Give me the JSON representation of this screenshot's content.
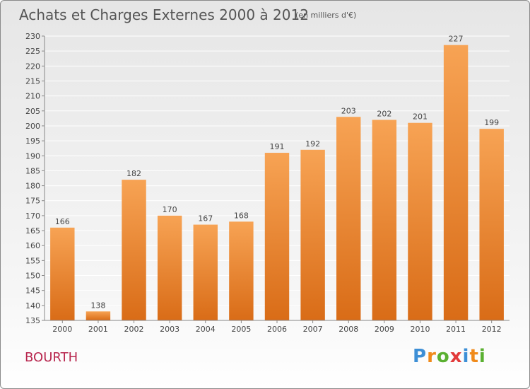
{
  "header": {
    "title": "Achats et Charges Externes 2000 à 2012",
    "unit": "(en milliers d'€)"
  },
  "place": "BOURTH",
  "logo": {
    "text": "Proxiti",
    "letter_colors": [
      "#3d8fd6",
      "#f08a1a",
      "#5ab031",
      "#e23a3a",
      "#3d8fd6",
      "#f08a1a",
      "#5ab031"
    ]
  },
  "colors": {
    "bar_light": "#f7a354",
    "bar_dark": "#d96c17",
    "axis_text": "#444444",
    "grid": "#ffffff"
  },
  "chart_data": {
    "type": "bar",
    "title": "Achats et Charges Externes 2000 à 2012",
    "subtitle": "(en milliers d'€)",
    "categories": [
      "2000",
      "2001",
      "2002",
      "2003",
      "2004",
      "2005",
      "2006",
      "2007",
      "2008",
      "2009",
      "2010",
      "2011",
      "2012"
    ],
    "values": [
      166,
      138,
      182,
      170,
      167,
      168,
      191,
      192,
      203,
      202,
      201,
      227,
      199
    ],
    "ylim": [
      135,
      230
    ],
    "yticks": [
      135,
      140,
      145,
      150,
      155,
      160,
      165,
      170,
      175,
      180,
      185,
      190,
      195,
      200,
      205,
      210,
      215,
      220,
      225,
      230
    ],
    "grid": true,
    "xlabel": "",
    "ylabel": ""
  }
}
